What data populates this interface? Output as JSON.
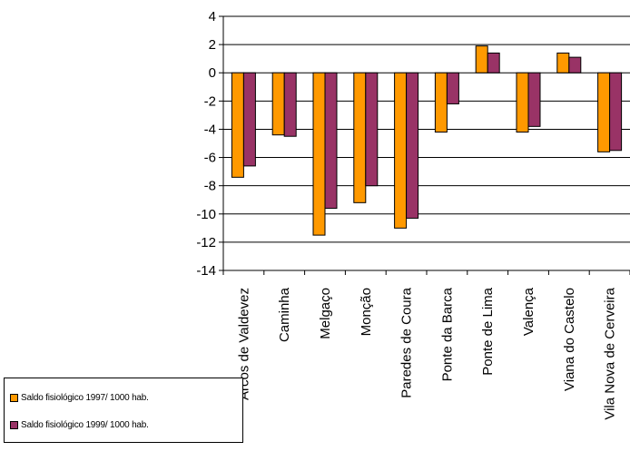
{
  "chart_data": {
    "type": "bar",
    "categories": [
      "Arcos de Valdevez",
      "Caminha",
      "Melgaço",
      "Monção",
      "Paredes de Coura",
      "Ponte da Barca",
      "Ponte de Lima",
      "Valença",
      "Viana do Castelo",
      "Vila Nova de Cerveira"
    ],
    "series": [
      {
        "name": "Saldo fisiológico 1997/ 1000 hab.",
        "color": "#FF9900",
        "values": [
          -7.4,
          -4.4,
          -11.5,
          -9.2,
          -11.0,
          -4.2,
          1.9,
          -4.2,
          1.4,
          -5.6
        ]
      },
      {
        "name": "Saldo fisiológico 1999/ 1000 hab.",
        "color": "#993366",
        "values": [
          -6.6,
          -4.5,
          -9.6,
          -8.0,
          -10.3,
          -2.2,
          1.4,
          -3.8,
          1.1,
          -5.5
        ]
      }
    ],
    "yticks": [
      4,
      2,
      0,
      -2,
      -4,
      -6,
      -8,
      -10,
      -12,
      -14
    ],
    "ylim": [
      -14,
      4
    ],
    "grid": true,
    "legend_position": "bottom-left"
  }
}
